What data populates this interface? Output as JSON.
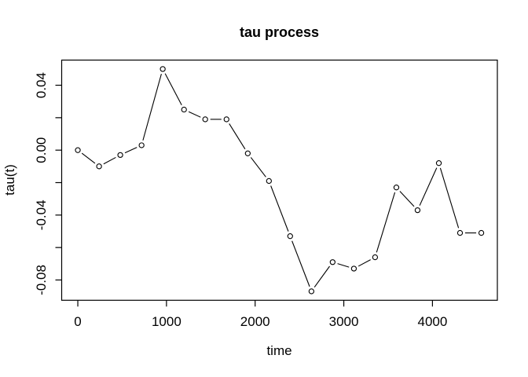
{
  "window": {
    "background_color": "#ffffff",
    "foreground_color": "#000000"
  },
  "chart_data": {
    "type": "line",
    "title": "tau process",
    "xlabel": "time",
    "ylabel": "tau(t)",
    "marker": "open-circle",
    "line_style": "solid-segments-with-gaps-at-markers",
    "line_color": "#000000",
    "marker_fill": "#ffffff",
    "grid": false,
    "legend": null,
    "x": [
      0,
      240,
      479,
      719,
      958,
      1198,
      1437,
      1677,
      1917,
      2156,
      2395,
      2635,
      2874,
      3114,
      3353,
      3593,
      3832,
      4072,
      4311,
      4551
    ],
    "y": [
      0.0,
      -0.01,
      -0.003,
      0.003,
      0.05,
      0.025,
      0.019,
      0.019,
      -0.002,
      -0.019,
      -0.053,
      -0.087,
      -0.069,
      -0.073,
      -0.066,
      -0.023,
      -0.037,
      -0.008,
      -0.051,
      -0.051
    ],
    "xlim": [
      -182,
      4732
    ],
    "ylim": [
      -0.0925,
      0.0555
    ],
    "xticks": [
      0,
      1000,
      2000,
      3000,
      4000
    ],
    "xtick_labels": [
      "0",
      "1000",
      "2000",
      "3000",
      "4000"
    ],
    "yticks": [
      0.04,
      0.02,
      0.0,
      -0.02,
      -0.04,
      -0.06,
      -0.08
    ],
    "ytick_labels": [
      "0.04",
      "",
      "0.00",
      "",
      "-0.04",
      "",
      "-0.08"
    ]
  }
}
